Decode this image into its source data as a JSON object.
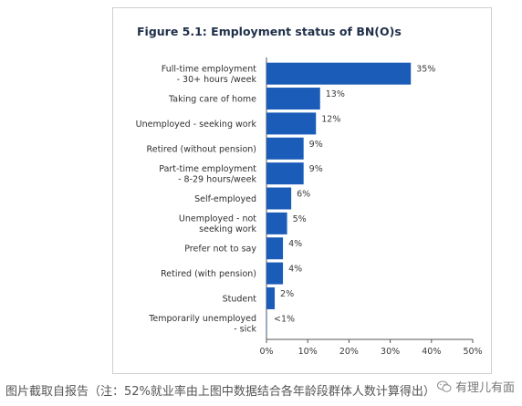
{
  "chart_data": {
    "type": "bar",
    "orientation": "horizontal",
    "title": "Figure 5.1: Employment status of BN(O)s",
    "categories": [
      [
        "Full-time employment",
        "- 30+ hours /week"
      ],
      [
        "Taking care of home"
      ],
      [
        "Unemployed - seeking work"
      ],
      [
        "Retired (without pension)"
      ],
      [
        "Part-time employment",
        "- 8-29 hours/week"
      ],
      [
        "Self-employed"
      ],
      [
        "Unemployed - not",
        "seeking work"
      ],
      [
        "Prefer not to say"
      ],
      [
        "Retired (with pension)"
      ],
      [
        "Student"
      ],
      [
        "Temporarily unemployed",
        "- sick"
      ]
    ],
    "values": [
      35,
      13,
      12,
      9,
      9,
      6,
      5,
      4,
      4,
      2,
      0.5
    ],
    "data_labels": [
      "35%",
      "13%",
      "12%",
      "9%",
      "9%",
      "6%",
      "5%",
      "4%",
      "4%",
      "2%",
      "<1%"
    ],
    "xlim": [
      0,
      50
    ],
    "xticks": [
      0,
      10,
      20,
      30,
      40,
      50
    ],
    "xtick_labels": [
      "0%",
      "10%",
      "20%",
      "30%",
      "40%",
      "50%"
    ],
    "bar_color": "#1a5cb8",
    "grid": false
  },
  "caption": "图片截取自报告（注：52%就业率由上图中数据结合各年龄段群体人数计算得出）",
  "watermark": {
    "icon": "wechat-icon",
    "text": "有理儿有面"
  }
}
